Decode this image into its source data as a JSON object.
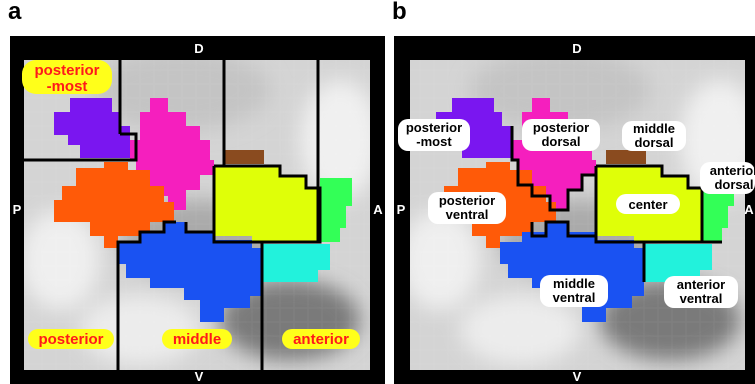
{
  "panels": [
    {
      "letter": "a",
      "orientation": {
        "top": "D",
        "bottom": "V",
        "left": "P",
        "right": "A"
      },
      "labels": {
        "posterior_most_line1": "posterior",
        "posterior_most_line2": "-most",
        "posterior": "posterior",
        "middle": "middle",
        "anterior": "anterior"
      }
    },
    {
      "letter": "b",
      "orientation": {
        "top": "D",
        "bottom": "V",
        "left": "P",
        "right": "A"
      },
      "labels": {
        "posterior_most_line1": "posterior",
        "posterior_most_line2": "-most",
        "posterior_dorsal_line1": "posterior",
        "posterior_dorsal_line2": "dorsal",
        "middle_dorsal_line1": "middle",
        "middle_dorsal_line2": "dorsal",
        "anterior_dorsal_line1": "anterior",
        "anterior_dorsal_line2": "dorsal",
        "posterior_ventral_line1": "posterior",
        "posterior_ventral_line2": "ventral",
        "center": "center",
        "middle_ventral_line1": "middle",
        "middle_ventral_line2": "ventral",
        "anterior_ventral_line1": "anterior",
        "anterior_ventral_line2": "ventral"
      }
    }
  ],
  "colors": {
    "purple": "#7a16f0",
    "magenta": "#f51fbe",
    "brown": "#8a4b1f",
    "orange": "#ff5a08",
    "yellow": "#dfff08",
    "green": "#33ff57",
    "cyan": "#22f2dc",
    "blue": "#1a52f2",
    "label_highlight": "#ffff1a",
    "label_text_red": "#ff1a1a"
  }
}
